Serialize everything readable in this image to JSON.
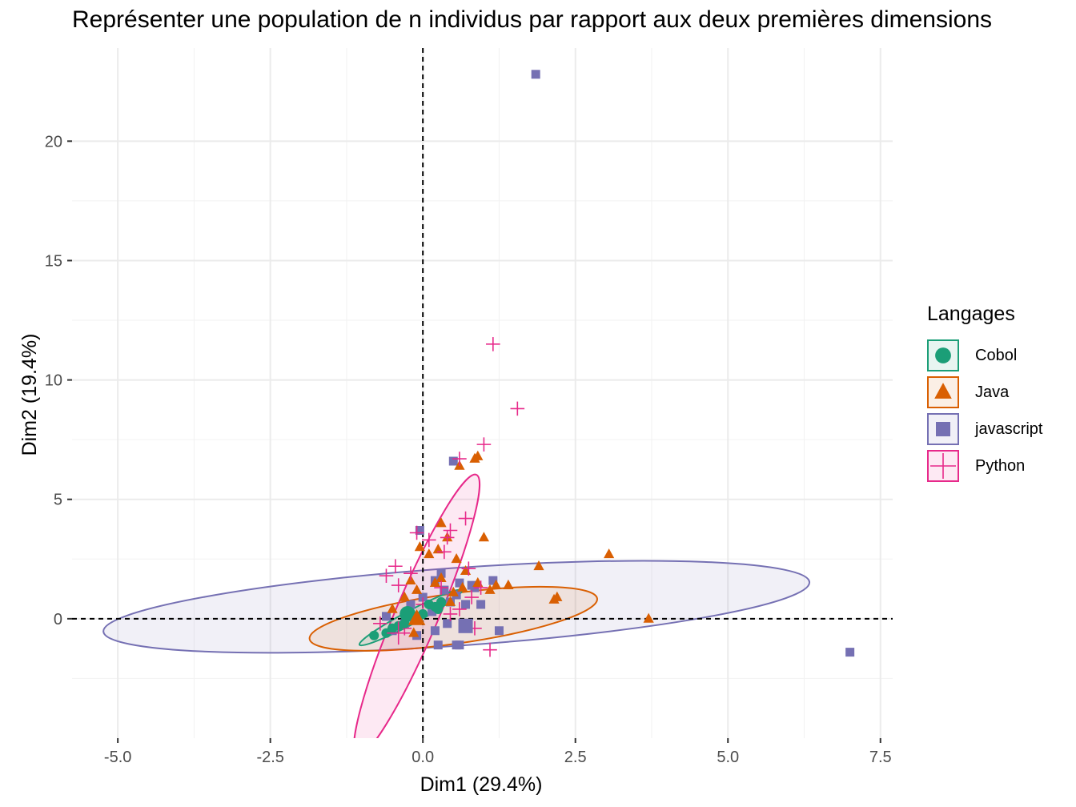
{
  "title": "Représenter une population de n individus par rapport aux deux premières dimensions",
  "legend": {
    "title": "Langages",
    "items": [
      {
        "label": "Cobol",
        "color": "#1b9e77",
        "shape": "circle"
      },
      {
        "label": "Java",
        "color": "#d95f02",
        "shape": "triangle"
      },
      {
        "label": "javascript",
        "color": "#7570b3",
        "shape": "square"
      },
      {
        "label": "Python",
        "color": "#e7298a",
        "shape": "cross"
      }
    ]
  },
  "chart_data": {
    "type": "scatter",
    "title": "Représenter une population de n individus par rapport aux deux premières dimensions",
    "xlabel": "Dim1 (29.4%)",
    "ylabel": "Dim2 (19.4%)",
    "xlim": [
      -5.75,
      7.7
    ],
    "ylim": [
      -5.0,
      23.9
    ],
    "xticks": [
      -5.0,
      -2.5,
      0.0,
      2.5,
      5.0,
      7.5
    ],
    "xtick_labels": [
      "-5.0",
      "-2.5",
      "0.0",
      "2.5",
      "5.0",
      "7.5"
    ],
    "yticks": [
      0,
      5,
      10,
      15,
      20
    ],
    "ytick_labels": [
      "0",
      "5",
      "10",
      "15",
      "20"
    ],
    "grid": true,
    "legend_position": "right",
    "reference_lines": {
      "x": 0,
      "y": 0
    },
    "series": [
      {
        "name": "Cobol",
        "color": "#1b9e77",
        "shape": "circle",
        "points": [
          [
            -0.2,
            0.2
          ],
          [
            -0.5,
            -0.4
          ],
          [
            -0.1,
            0.1
          ],
          [
            0.1,
            0.6
          ],
          [
            0.3,
            0.7
          ],
          [
            -0.8,
            -0.7
          ],
          [
            -0.3,
            -0.2
          ],
          [
            0.2,
            0.5
          ],
          [
            -0.6,
            -0.6
          ],
          [
            0.0,
            0.2
          ],
          [
            -0.4,
            -0.3
          ],
          [
            0.25,
            0.4
          ]
        ],
        "centroid": [
          -0.25,
          0.2
        ],
        "ellipse": {
          "center": [
            -0.2,
            0.05
          ],
          "rx": 0.95,
          "ry": 0.28,
          "angle_deg": -28
        }
      },
      {
        "name": "Java",
        "color": "#d95f02",
        "shape": "triangle",
        "points": [
          [
            0.3,
            4.0
          ],
          [
            0.4,
            3.4
          ],
          [
            0.6,
            6.4
          ],
          [
            0.9,
            6.8
          ],
          [
            0.85,
            6.7
          ],
          [
            1.0,
            3.4
          ],
          [
            0.25,
            2.9
          ],
          [
            0.55,
            2.5
          ],
          [
            3.05,
            2.7
          ],
          [
            3.7,
            0.0
          ],
          [
            1.9,
            2.2
          ],
          [
            2.2,
            0.9
          ],
          [
            2.15,
            0.8
          ],
          [
            1.4,
            1.4
          ],
          [
            1.2,
            1.4
          ],
          [
            0.3,
            1.7
          ],
          [
            0.1,
            2.7
          ],
          [
            0.7,
            2.0
          ],
          [
            -0.1,
            1.2
          ],
          [
            -0.3,
            0.9
          ],
          [
            0.5,
            1.1
          ],
          [
            -0.15,
            -0.6
          ],
          [
            -0.5,
            0.4
          ],
          [
            0.2,
            1.5
          ],
          [
            0.65,
            1.3
          ],
          [
            1.1,
            1.2
          ],
          [
            -0.05,
            3.0
          ],
          [
            0.45,
            0.7
          ],
          [
            0.9,
            1.5
          ],
          [
            -0.2,
            1.6
          ]
        ],
        "centroid": [
          -0.1,
          0.0
        ],
        "ellipse": {
          "center": [
            0.5,
            0.0
          ],
          "rx": 2.38,
          "ry": 1.05,
          "angle_deg": -8
        }
      },
      {
        "name": "javascript",
        "color": "#7570b3",
        "shape": "square",
        "points": [
          [
            1.85,
            22.8
          ],
          [
            0.5,
            6.6
          ],
          [
            7.0,
            -1.4
          ],
          [
            -0.05,
            3.7
          ],
          [
            0.3,
            1.9
          ],
          [
            0.2,
            1.6
          ],
          [
            0.6,
            1.5
          ],
          [
            0.8,
            1.4
          ],
          [
            1.15,
            1.6
          ],
          [
            0.55,
            1.0
          ],
          [
            0.45,
            0.7
          ],
          [
            0.7,
            0.6
          ],
          [
            0.95,
            0.6
          ],
          [
            1.25,
            -0.5
          ],
          [
            0.2,
            -0.5
          ],
          [
            0.25,
            -1.1
          ],
          [
            0.55,
            -1.1
          ],
          [
            0.6,
            -1.1
          ],
          [
            0.7,
            -0.3
          ],
          [
            0.4,
            -0.2
          ],
          [
            -0.2,
            0.6
          ],
          [
            -0.3,
            -0.2
          ],
          [
            -0.5,
            -0.5
          ],
          [
            -0.6,
            0.1
          ],
          [
            0.0,
            0.9
          ],
          [
            0.35,
            1.2
          ],
          [
            0.85,
            1.3
          ],
          [
            -0.1,
            -0.7
          ],
          [
            0.15,
            0.3
          ]
        ],
        "centroid": [
          0.7,
          -0.3
        ],
        "ellipse": {
          "center": [
            0.55,
            0.5
          ],
          "rx": 5.8,
          "ry": 1.63,
          "angle_deg": -4
        }
      },
      {
        "name": "Python",
        "color": "#e7298a",
        "shape": "cross",
        "points": [
          [
            1.15,
            11.5
          ],
          [
            1.55,
            8.8
          ],
          [
            1.0,
            7.3
          ],
          [
            0.6,
            6.7
          ],
          [
            0.7,
            4.2
          ],
          [
            0.45,
            3.7
          ],
          [
            0.4,
            3.4
          ],
          [
            0.1,
            3.3
          ],
          [
            -0.1,
            3.6
          ],
          [
            0.35,
            2.8
          ],
          [
            0.75,
            2.1
          ],
          [
            -0.45,
            2.2
          ],
          [
            -0.4,
            1.4
          ],
          [
            -0.6,
            1.8
          ],
          [
            1.1,
            -1.3
          ],
          [
            0.8,
            0.9
          ],
          [
            0.95,
            1.3
          ],
          [
            0.85,
            -0.4
          ],
          [
            0.6,
            0.4
          ],
          [
            0.0,
            0.6
          ],
          [
            -0.3,
            -0.4
          ],
          [
            -0.7,
            -0.2
          ],
          [
            -0.2,
            1.9
          ],
          [
            0.3,
            1.3
          ],
          [
            0.45,
            0.2
          ]
        ],
        "centroid": [
          -0.4,
          -0.6
        ],
        "ellipse": {
          "center": [
            -0.1,
            0.15
          ],
          "rx": 2.5,
          "ry": 0.9,
          "angle_deg": -67
        }
      }
    ]
  }
}
